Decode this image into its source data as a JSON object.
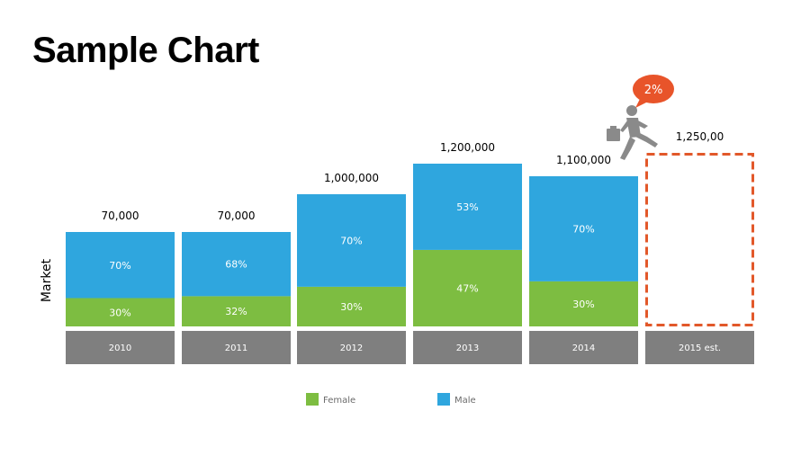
{
  "title": "Sample Chart",
  "colors": {
    "female": "#7dbd41",
    "male": "#2fa6de",
    "category_bg": "#7f7f7f",
    "forecast_border": "#e2582a",
    "bubble": "#e8542a",
    "figure": "#8a8a8a"
  },
  "chart_data": {
    "type": "bar",
    "stacked": true,
    "ylabel": "Market",
    "categories": [
      "2010",
      "2011",
      "2012",
      "2013",
      "2014",
      "2015 est."
    ],
    "totals_text": [
      "70,000",
      "70,000",
      "1,000,000",
      "1,200,000",
      "1,100,000",
      "1,250,00"
    ],
    "series": [
      {
        "name": "Female",
        "values": [
          30,
          32,
          30,
          47,
          30,
          null
        ],
        "labels": [
          "30%",
          "32%",
          "30%",
          "47%",
          "30%",
          ""
        ]
      },
      {
        "name": "Male",
        "values": [
          70,
          68,
          70,
          53,
          70,
          null
        ],
        "labels": [
          "70%",
          "68%",
          "70%",
          "53%",
          "70%",
          ""
        ]
      }
    ],
    "forecast": {
      "category": "2015 est.",
      "growth_label": "2%"
    },
    "legend": [
      "Female",
      "Male"
    ],
    "legend_position": "bottom"
  }
}
